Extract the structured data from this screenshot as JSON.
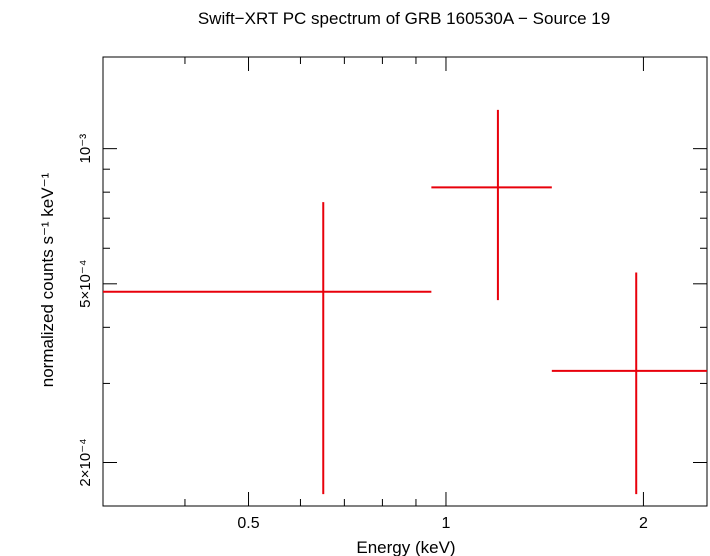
{
  "chart_data": {
    "type": "scatter",
    "title": "Swift−XRT PC spectrum of GRB 160530A − Source 19",
    "xlabel": "Energy (keV)",
    "ylabel": "normalized counts s⁻¹ keV⁻¹",
    "x_scale": "log",
    "y_scale": "log",
    "xlim": [
      0.3,
      2.5
    ],
    "ylim": [
      0.00016,
      0.0016
    ],
    "x_ticks": [
      {
        "value": 0.5,
        "label": "0.5"
      },
      {
        "value": 1,
        "label": "1"
      },
      {
        "value": 2,
        "label": "2"
      }
    ],
    "y_ticks": [
      {
        "value": 0.0002,
        "label": "2×10⁻⁴"
      },
      {
        "value": 0.0005,
        "label": "5×10⁻⁴"
      },
      {
        "value": 0.001,
        "label": "10⁻³"
      }
    ],
    "series": [
      {
        "color": "#e8000b",
        "points": [
          {
            "x": 0.65,
            "x_lo": 0.3,
            "x_hi": 0.95,
            "y": 0.00048,
            "y_lo": 0.00017,
            "y_hi": 0.00076
          },
          {
            "x": 1.2,
            "x_lo": 0.95,
            "x_hi": 1.45,
            "y": 0.00082,
            "y_lo": 0.00046,
            "y_hi": 0.00122
          },
          {
            "x": 1.95,
            "x_lo": 1.45,
            "x_hi": 2.5,
            "y": 0.00032,
            "y_lo": 0.00017,
            "y_hi": 0.00053
          }
        ]
      }
    ],
    "grid": false,
    "legend": "none"
  }
}
